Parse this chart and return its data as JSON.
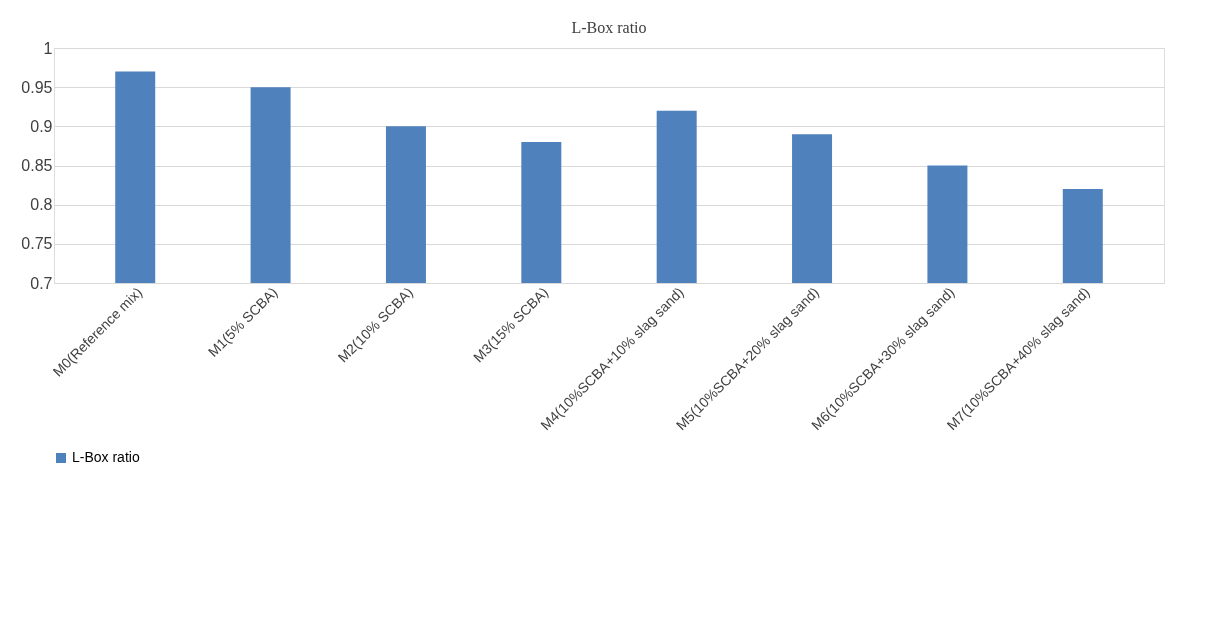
{
  "chart_data": {
    "type": "bar",
    "title": "L-Box ratio",
    "categories": [
      "M0(Reference mix)",
      "M1(5% SCBA)",
      "M2(10% SCBA)",
      "M3(15% SCBA)",
      "M4(10%SCBA+10% slag sand)",
      "M5(10%SCBA+20% slag sand)",
      "M6(10%SCBA+30% slag sand)",
      "M7(10%SCBA+40% slag sand)"
    ],
    "series": [
      {
        "name": "L-Box ratio",
        "color": "#4f81bd",
        "values": [
          0.97,
          0.95,
          0.9,
          0.88,
          0.92,
          0.89,
          0.85,
          0.82
        ]
      }
    ],
    "ylim": [
      0.7,
      1
    ],
    "yticks": [
      0.7,
      0.75,
      0.8,
      0.85,
      0.9,
      0.95,
      1
    ],
    "grid": "y",
    "legend": "bottom"
  }
}
